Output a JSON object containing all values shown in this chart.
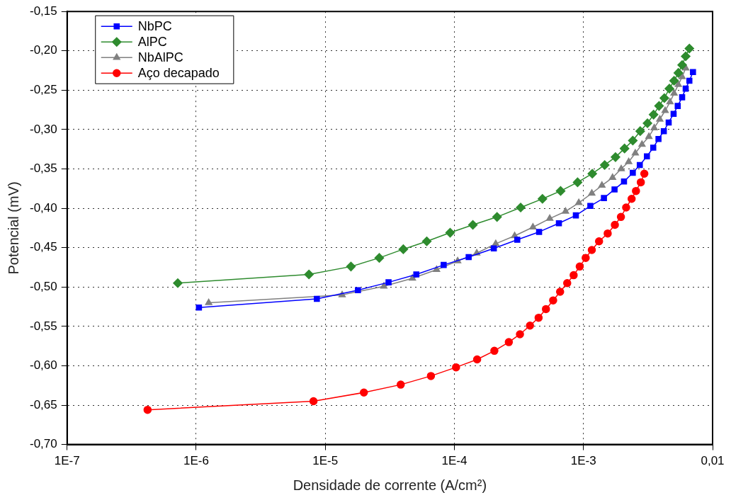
{
  "chart_data": {
    "type": "line",
    "xlabel": "Densidade de corrente (A/cm²)",
    "ylabel": "Potencial (mV)",
    "log": "x",
    "grid": true,
    "legend": "top left",
    "line_style": "solid",
    "xlim": [
      1e-07,
      0.01
    ],
    "xticks": [
      {
        "value": 1e-07,
        "label": "1E-7"
      },
      {
        "value": 1e-06,
        "label": "1E-6"
      },
      {
        "value": 1e-05,
        "label": "1E-5"
      },
      {
        "value": 0.0001,
        "label": "1E-4"
      },
      {
        "value": 0.001,
        "label": "1E-3"
      },
      {
        "value": 0.01,
        "label": "0,01"
      }
    ],
    "ylim": [
      -0.7,
      -0.15
    ],
    "yticks": [
      {
        "value": -0.7,
        "label": "-0,70"
      },
      {
        "value": -0.65,
        "label": "-0,65"
      },
      {
        "value": -0.6,
        "label": "-0,60"
      },
      {
        "value": -0.55,
        "label": "-0,55"
      },
      {
        "value": -0.5,
        "label": "-0,50"
      },
      {
        "value": -0.45,
        "label": "-0,45"
      },
      {
        "value": -0.4,
        "label": "-0,40"
      },
      {
        "value": -0.35,
        "label": "-0,35"
      },
      {
        "value": -0.3,
        "label": "-0,30"
      },
      {
        "value": -0.25,
        "label": "-0,25"
      },
      {
        "value": -0.2,
        "label": "-0,20"
      },
      {
        "value": -0.15,
        "label": "-0,15"
      }
    ],
    "series": [
      {
        "name": "NbPC",
        "color": "#0000ff",
        "marker": "square",
        "x": [
          1.05e-06,
          8.6e-06,
          1.79e-05,
          3.09e-05,
          5.07e-05,
          8.26e-05,
          0.000129,
          0.000202,
          0.000307,
          0.000453,
          0.000645,
          0.000873,
          0.00113,
          0.00144,
          0.00174,
          0.00206,
          0.00241,
          0.00273,
          0.0031,
          0.00347,
          0.00381,
          0.00419,
          0.00457,
          0.00499,
          0.00537,
          0.00581,
          0.00619,
          0.00661,
          0.00705
        ],
        "values": [
          -0.526,
          -0.515,
          -0.504,
          -0.494,
          -0.484,
          -0.472,
          -0.462,
          -0.451,
          -0.44,
          -0.43,
          -0.419,
          -0.409,
          -0.397,
          -0.387,
          -0.376,
          -0.366,
          -0.355,
          -0.345,
          -0.334,
          -0.323,
          -0.312,
          -0.302,
          -0.291,
          -0.28,
          -0.27,
          -0.259,
          -0.248,
          -0.238,
          -0.227
        ]
      },
      {
        "name": "AlPC",
        "color": "#2e8b2e",
        "marker": "diamond",
        "x": [
          7.2e-07,
          7.47e-06,
          1.58e-05,
          2.62e-05,
          4.02e-05,
          6.11e-05,
          9.27e-05,
          0.000139,
          0.000214,
          0.000326,
          0.000481,
          0.000665,
          0.0009,
          0.00117,
          0.00146,
          0.00177,
          0.00208,
          0.00241,
          0.00275,
          0.00313,
          0.00349,
          0.00385,
          0.00423,
          0.00463,
          0.00503,
          0.00543,
          0.00581,
          0.00619,
          0.00661
        ],
        "values": [
          -0.495,
          -0.484,
          -0.474,
          -0.463,
          -0.452,
          -0.442,
          -0.431,
          -0.421,
          -0.411,
          -0.399,
          -0.388,
          -0.378,
          -0.367,
          -0.356,
          -0.345,
          -0.335,
          -0.324,
          -0.314,
          -0.302,
          -0.292,
          -0.281,
          -0.27,
          -0.26,
          -0.248,
          -0.238,
          -0.228,
          -0.218,
          -0.207,
          -0.197
        ]
      },
      {
        "name": "NbAlPC",
        "color": "#808080",
        "marker": "triangle",
        "x": [
          1.25e-06,
          1.35e-05,
          2.84e-05,
          4.73e-05,
          7.28e-05,
          0.000106,
          0.000149,
          0.000209,
          0.000293,
          0.000406,
          0.000548,
          0.000726,
          0.00092,
          0.00116,
          0.00139,
          0.00168,
          0.00196,
          0.00224,
          0.00252,
          0.00284,
          0.00321,
          0.00353,
          0.0039,
          0.00429,
          0.00468,
          0.00503,
          0.00543,
          0.00581,
          0.00619
        ],
        "values": [
          -0.52,
          -0.51,
          -0.499,
          -0.489,
          -0.478,
          -0.467,
          -0.457,
          -0.445,
          -0.435,
          -0.424,
          -0.413,
          -0.404,
          -0.393,
          -0.381,
          -0.371,
          -0.361,
          -0.35,
          -0.341,
          -0.33,
          -0.319,
          -0.309,
          -0.298,
          -0.287,
          -0.276,
          -0.265,
          -0.254,
          -0.243,
          -0.233,
          -0.222
        ]
      },
      {
        "name": "Aço decapado",
        "color": "#ff0000",
        "marker": "circle",
        "x": [
          4.2e-07,
          8.1e-06,
          1.99e-05,
          3.84e-05,
          6.58e-05,
          0.000103,
          0.00015,
          0.000204,
          0.000264,
          0.000322,
          0.000385,
          0.000449,
          0.000512,
          0.000582,
          0.000659,
          0.000748,
          0.000839,
          0.000935,
          0.00104,
          0.00116,
          0.00132,
          0.00154,
          0.00175,
          0.00195,
          0.00214,
          0.00236,
          0.00255,
          0.00278,
          0.00296
        ],
        "values": [
          -0.656,
          -0.645,
          -0.634,
          -0.624,
          -0.613,
          -0.602,
          -0.592,
          -0.581,
          -0.57,
          -0.56,
          -0.549,
          -0.539,
          -0.528,
          -0.517,
          -0.506,
          -0.495,
          -0.485,
          -0.474,
          -0.463,
          -0.453,
          -0.442,
          -0.432,
          -0.421,
          -0.411,
          -0.399,
          -0.388,
          -0.378,
          -0.367,
          -0.356
        ]
      }
    ]
  }
}
